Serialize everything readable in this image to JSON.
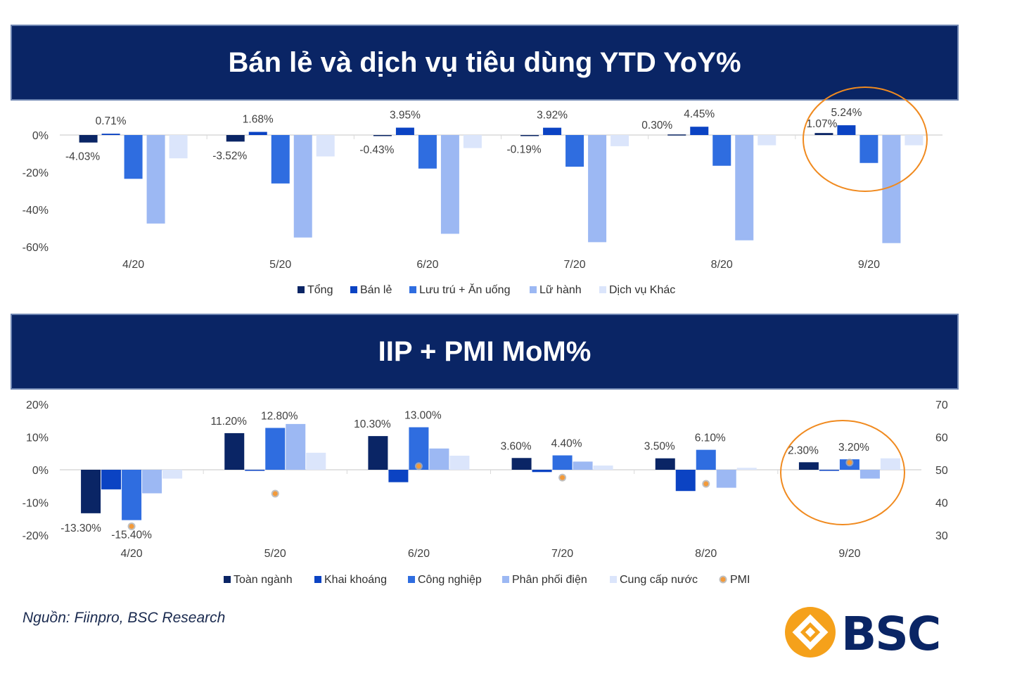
{
  "chart_data": [
    {
      "type": "bar",
      "title": "Bán lẻ và dịch vụ tiêu dùng YTD YoY%",
      "categories": [
        "4/20",
        "5/20",
        "6/20",
        "7/20",
        "8/20",
        "9/20"
      ],
      "yticks": [
        "0%",
        "-20%",
        "-40%",
        "-60%"
      ],
      "ylim": [
        -0.6,
        0.03
      ],
      "legend_position": "bottom",
      "series": [
        {
          "name": "Tổng",
          "color": "#0a2565",
          "values": [
            -0.0403,
            -0.0352,
            -0.0043,
            -0.0019,
            0.003,
            0.0107
          ],
          "labels": [
            "-4.03%",
            "-3.52%",
            "-0.43%",
            "-0.19%",
            "0.30%",
            "1.07%"
          ]
        },
        {
          "name": "Bán lẻ",
          "color": "#0b43c3",
          "values": [
            0.0071,
            0.0168,
            0.0395,
            0.0392,
            0.0445,
            0.0524
          ],
          "labels": [
            "0.71%",
            "1.68%",
            "3.95%",
            "3.92%",
            "4.45%",
            "5.24%"
          ]
        },
        {
          "name": "Lưu trú + Ăn uống",
          "color": "#2f6de0",
          "values": [
            -0.235,
            -0.26,
            -0.18,
            -0.17,
            -0.165,
            -0.15
          ]
        },
        {
          "name": "Lữ hành",
          "color": "#9cb8f3",
          "values": [
            -0.475,
            -0.55,
            -0.53,
            -0.575,
            -0.565,
            -0.58
          ]
        },
        {
          "name": "Dịch vụ Khác",
          "color": "#dbe5fb",
          "values": [
            -0.125,
            -0.115,
            -0.07,
            -0.06,
            -0.055,
            -0.055
          ]
        }
      ]
    },
    {
      "type": "bar",
      "title": "IIP + PMI MoM%",
      "categories": [
        "4/20",
        "5/20",
        "6/20",
        "7/20",
        "8/20",
        "9/20"
      ],
      "yticks_left": [
        "20%",
        "10%",
        "0%",
        "-10%",
        "-20%"
      ],
      "ylim_left": [
        -0.2,
        0.2
      ],
      "yticks_right": [
        "70",
        "60",
        "50",
        "40",
        "30"
      ],
      "ylim_right": [
        30,
        70
      ],
      "legend_position": "bottom",
      "series": [
        {
          "name": "Toàn ngành",
          "color": "#0a2565",
          "values": [
            -0.133,
            0.112,
            0.103,
            0.036,
            0.035,
            0.023
          ],
          "labels": [
            "-13.30%",
            "11.20%",
            "10.30%",
            "3.60%",
            "3.50%",
            "2.30%"
          ]
        },
        {
          "name": "Khai khoáng",
          "color": "#0b43c3",
          "values": [
            -0.06,
            -0.003,
            -0.038,
            -0.007,
            -0.065,
            0.0
          ]
        },
        {
          "name": "Công nghiệp",
          "color": "#2f6de0",
          "values": [
            -0.154,
            0.128,
            0.13,
            0.044,
            0.061,
            0.032
          ],
          "labels": [
            "-15.40%",
            "12.80%",
            "13.00%",
            "4.40%",
            "6.10%",
            "3.20%"
          ]
        },
        {
          "name": "Phân phối điện",
          "color": "#9cb8f3",
          "values": [
            -0.072,
            0.14,
            0.065,
            0.025,
            -0.055,
            -0.027
          ]
        },
        {
          "name": "Cung cấp nước",
          "color": "#dbe5fb",
          "values": [
            -0.027,
            0.052,
            0.043,
            0.013,
            0.006,
            0.035
          ]
        },
        {
          "name": "PMI",
          "color": "#f39a3a",
          "type": "scatter",
          "values": [
            32.7,
            42.7,
            51.1,
            47.6,
            45.7,
            52.2
          ]
        }
      ]
    }
  ],
  "source": "Nguồn: Fiinpro, BSC Research",
  "logo": {
    "text": "BSC",
    "color": "#0a2565",
    "accent": "#f5a11b"
  },
  "highlight_color": "#f08a1f"
}
